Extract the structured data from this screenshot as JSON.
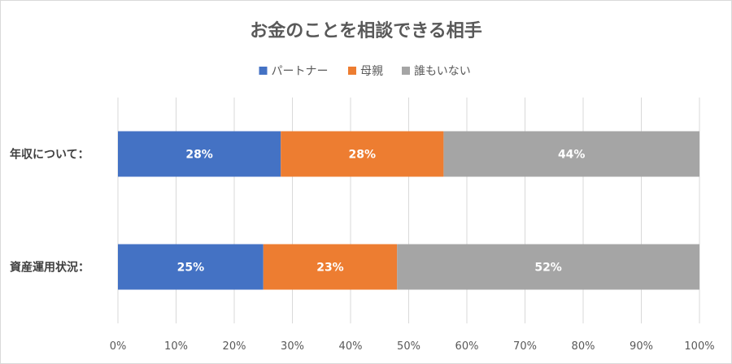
{
  "chart_data": {
    "type": "bar",
    "orientation": "horizontal",
    "stacked": "percent",
    "title": "お金のことを相談できる相手",
    "categories": [
      "年収について：",
      "資産運用状況："
    ],
    "series": [
      {
        "name": "パートナー",
        "color": "#4472C4",
        "values": [
          28,
          25
        ],
        "labels": [
          "28%",
          "25%"
        ]
      },
      {
        "name": "母親",
        "color": "#ED7D31",
        "values": [
          28,
          23
        ],
        "labels": [
          "28%",
          "23%"
        ]
      },
      {
        "name": "誰もいない",
        "color": "#A5A5A5",
        "values": [
          44,
          52
        ],
        "labels": [
          "44%",
          "52%"
        ]
      }
    ],
    "xlim": [
      0,
      100
    ],
    "xticks": [
      "0%",
      "10%",
      "20%",
      "30%",
      "40%",
      "50%",
      "60%",
      "70%",
      "80%",
      "90%",
      "100%"
    ],
    "grid": true,
    "legend": "top-center"
  }
}
